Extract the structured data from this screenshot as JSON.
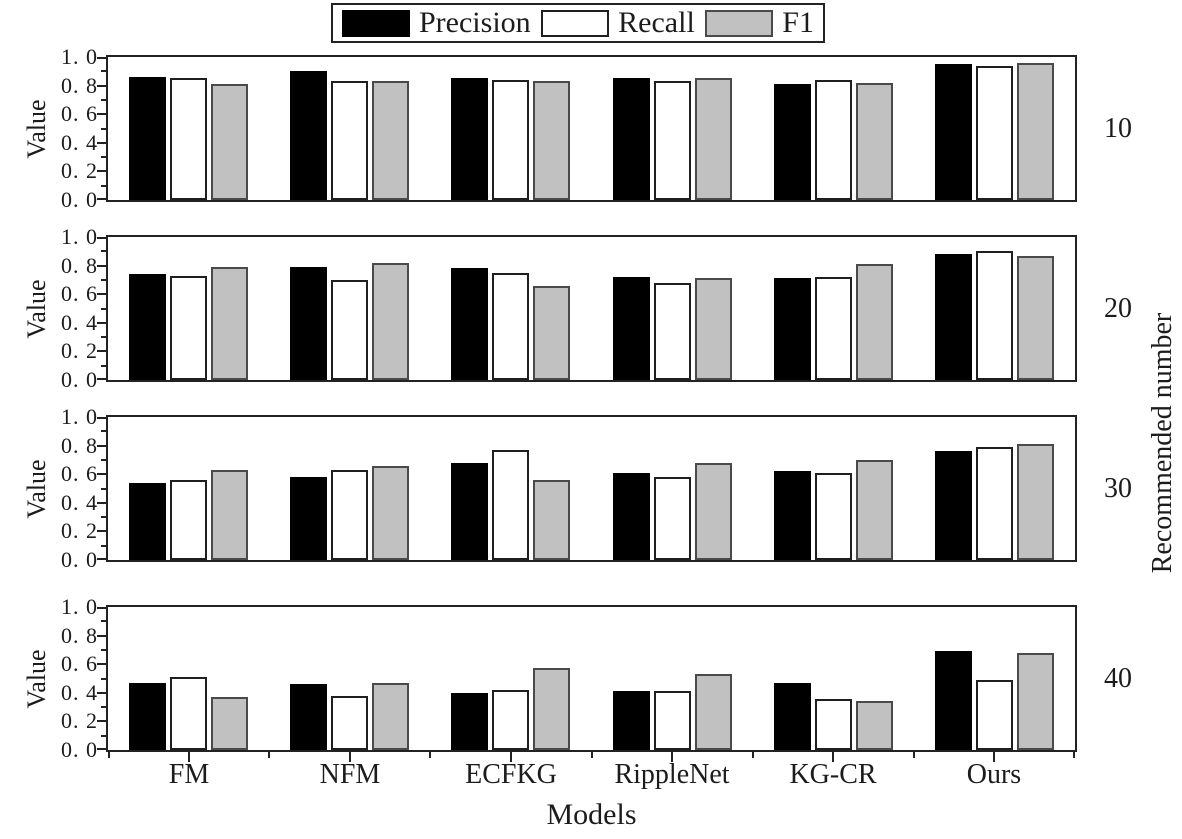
{
  "chart_data": {
    "type": "bar",
    "title": "",
    "categories": [
      "FM",
      "NFM",
      "ECFKG",
      "RippleNet",
      "KG-CR",
      "Ours"
    ],
    "xlabel": "Models",
    "ylabel": "Value",
    "right_label": "Recommended number",
    "legend_position": "top",
    "grid": false,
    "ylim": [
      0.0,
      1.0
    ],
    "y_ticks": [
      0.0,
      0.2,
      0.4,
      0.6,
      0.8,
      1.0
    ],
    "y_tick_labels": [
      "0. 0",
      "0. 2",
      "0. 4",
      "0. 6",
      "0. 8",
      "1. 0"
    ],
    "series_meta": [
      {
        "label": "Precision",
        "fill": "#000000",
        "edge": "#000000"
      },
      {
        "label": "Recall",
        "fill": "#ffffff",
        "edge": "#1f1f1f"
      },
      {
        "label": "F1",
        "fill": "#c1c1c1",
        "edge": "#4a4a4a"
      }
    ],
    "subplots": [
      {
        "recommended_number": "10",
        "series": [
          {
            "name": "Precision",
            "values": [
              0.86,
              0.9,
              0.85,
              0.85,
              0.81,
              0.95
            ]
          },
          {
            "name": "Recall",
            "values": [
              0.85,
              0.83,
              0.84,
              0.83,
              0.84,
              0.94
            ]
          },
          {
            "name": "F1",
            "values": [
              0.81,
              0.83,
              0.83,
              0.85,
              0.82,
              0.96
            ]
          }
        ]
      },
      {
        "recommended_number": "20",
        "series": [
          {
            "name": "Precision",
            "values": [
              0.74,
              0.79,
              0.78,
              0.72,
              0.71,
              0.88
            ]
          },
          {
            "name": "Recall",
            "values": [
              0.73,
              0.7,
              0.75,
              0.68,
              0.72,
              0.9
            ]
          },
          {
            "name": "F1",
            "values": [
              0.79,
              0.82,
              0.66,
              0.71,
              0.81,
              0.87
            ]
          }
        ]
      },
      {
        "recommended_number": "30",
        "series": [
          {
            "name": "Precision",
            "values": [
              0.54,
              0.58,
              0.68,
              0.61,
              0.62,
              0.76
            ]
          },
          {
            "name": "Recall",
            "values": [
              0.56,
              0.63,
              0.77,
              0.58,
              0.61,
              0.79
            ]
          },
          {
            "name": "F1",
            "values": [
              0.63,
              0.66,
              0.56,
              0.68,
              0.7,
              0.81
            ]
          }
        ]
      },
      {
        "recommended_number": "40",
        "series": [
          {
            "name": "Precision",
            "values": [
              0.47,
              0.46,
              0.4,
              0.41,
              0.47,
              0.69
            ]
          },
          {
            "name": "Recall",
            "values": [
              0.51,
              0.38,
              0.42,
              0.41,
              0.36,
              0.49
            ]
          },
          {
            "name": "F1",
            "values": [
              0.37,
              0.47,
              0.57,
              0.53,
              0.34,
              0.68
            ]
          }
        ]
      }
    ]
  }
}
